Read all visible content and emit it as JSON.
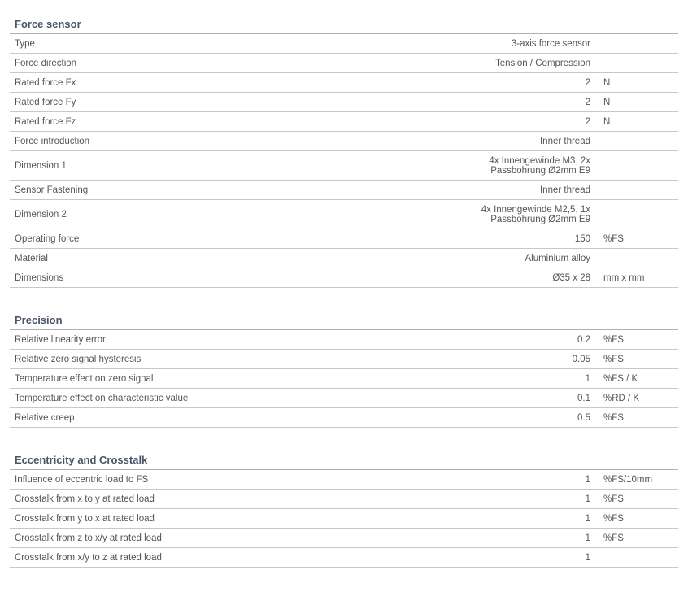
{
  "sections": [
    {
      "title": "Force sensor",
      "rows": [
        {
          "label": "Type",
          "value": "3-axis force sensor",
          "unit": ""
        },
        {
          "label": "Force direction",
          "value": "Tension / Compression",
          "unit": ""
        },
        {
          "label": "Rated force Fx",
          "value": "2",
          "unit": "N"
        },
        {
          "label": "Rated force Fy",
          "value": "2",
          "unit": "N"
        },
        {
          "label": "Rated force Fz",
          "value": "2",
          "unit": "N"
        },
        {
          "label": "Force introduction",
          "value": "Inner thread",
          "unit": ""
        },
        {
          "label": "Dimension 1",
          "value": "4x Innengewinde M3, 2x\nPassbohrung Ø2mm E9",
          "unit": "",
          "multiline": true
        },
        {
          "label": "Sensor Fastening",
          "value": "Inner thread",
          "unit": ""
        },
        {
          "label": "Dimension 2",
          "value": "4x Innengewinde M2,5, 1x\nPassbohrung Ø2mm E9",
          "unit": "",
          "multiline": true
        },
        {
          "label": "Operating force",
          "value": "150",
          "unit": "%FS"
        },
        {
          "label": "Material",
          "value": "Aluminium alloy",
          "unit": ""
        },
        {
          "label": "Dimensions",
          "value": "Ø35 x 28",
          "unit": "mm x mm"
        }
      ]
    },
    {
      "title": "Precision",
      "rows": [
        {
          "label": "Relative linearity error",
          "value": "0.2",
          "unit": "%FS"
        },
        {
          "label": "Relative zero signal hysteresis",
          "value": "0.05",
          "unit": "%FS"
        },
        {
          "label": "Temperature effect on zero signal",
          "value": "1",
          "unit": "%FS / K"
        },
        {
          "label": "Temperature effect on characteristic value",
          "value": "0.1",
          "unit": "%RD / K"
        },
        {
          "label": "Relative creep",
          "value": "0.5",
          "unit": "%FS"
        }
      ]
    },
    {
      "title": "Eccentricity and Crosstalk",
      "rows": [
        {
          "label": "Influence of eccentric load to FS",
          "value": "1",
          "unit": "%FS/10mm"
        },
        {
          "label": "Crosstalk from x to y at rated load",
          "value": "1",
          "unit": "%FS"
        },
        {
          "label": "Crosstalk from y to x at rated load",
          "value": "1",
          "unit": "%FS"
        },
        {
          "label": "Crosstalk from z to x/y at rated load",
          "value": "1",
          "unit": "%FS"
        },
        {
          "label": "Crosstalk from x/y to z at rated load",
          "value": "1",
          "unit": ""
        }
      ]
    }
  ]
}
